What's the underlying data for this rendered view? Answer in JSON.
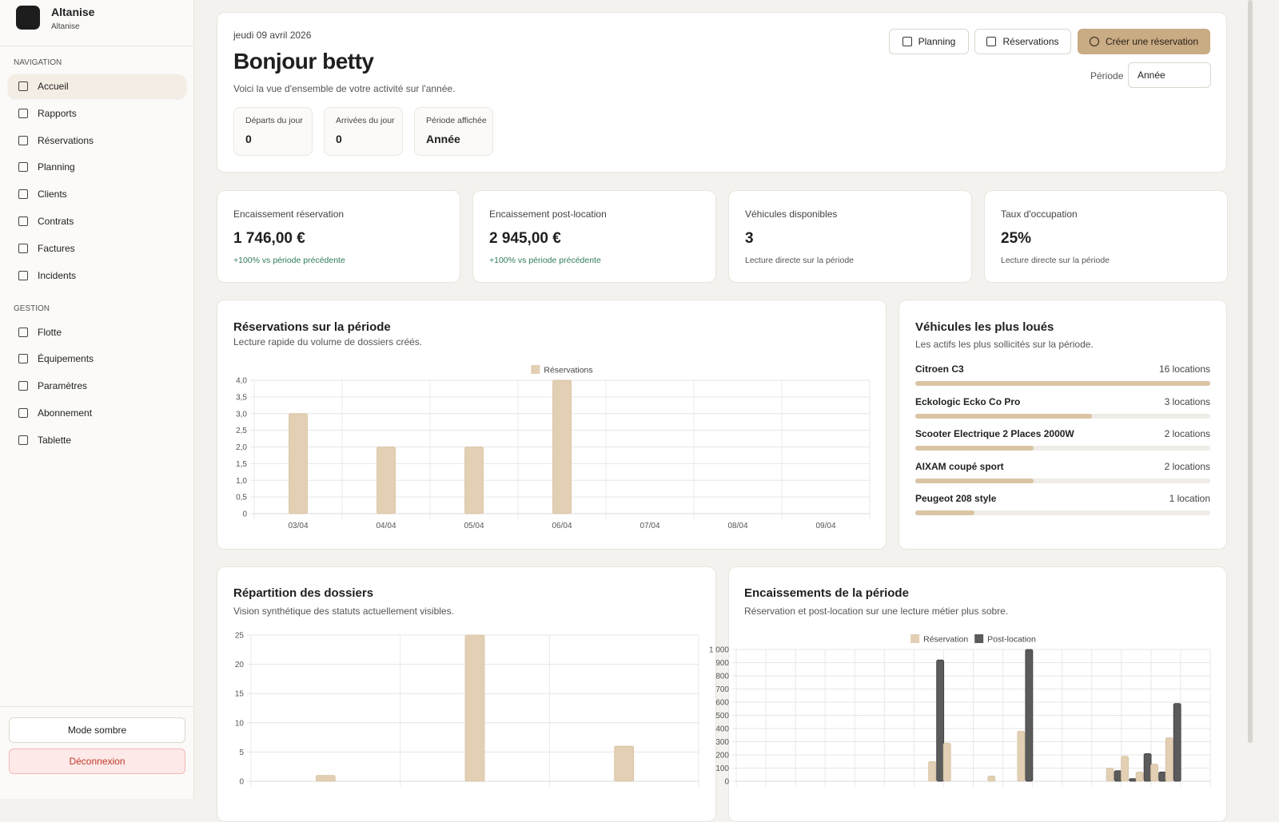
{
  "sidebar": {
    "brand": "Altanise",
    "brand_sub": "Altanise",
    "sections": [
      {
        "title": "NAVIGATION",
        "items": [
          "Accueil",
          "Rapports",
          "Réservations",
          "Planning",
          "Clients",
          "Contrats",
          "Factures",
          "Incidents"
        ]
      },
      {
        "title": "GESTION",
        "items": [
          "Flotte",
          "Équipements",
          "Paramètres",
          "Abonnement",
          "Tablette"
        ]
      }
    ],
    "theme_button": "Mode sombre",
    "logout_button": "Déconnexion"
  },
  "header": {
    "date": "jeudi 09 avril 2026",
    "greeting": "Bonjour betty",
    "subtitle": "Voici la vue d'ensemble de votre activité sur l'année.",
    "actions": [
      "Planning",
      "Réservations",
      "Créer une réservation"
    ],
    "period_label": "Période",
    "period_value": "Année",
    "stats": [
      {
        "label": "Départs du jour",
        "value": 0
      },
      {
        "label": "Arrivées du jour",
        "value": 0
      },
      {
        "label": "Période affichée",
        "value": "Année"
      }
    ]
  },
  "kpis": [
    {
      "label": "Encaissement réservation",
      "value": "1 746,00 €",
      "note": "+100% vs période précédente"
    },
    {
      "label": "Encaissement post-location",
      "value": "2 945,00 €",
      "note": "+100% vs période précédente"
    },
    {
      "label": "Véhicules disponibles",
      "value": 3,
      "note": "Lecture directe sur la période"
    },
    {
      "label": "Taux d'occupation",
      "value": "25%",
      "note": "Lecture directe sur la période"
    }
  ],
  "reservations_chart": {
    "type": "bar",
    "title": "Réservations sur la période",
    "subtitle": "Lecture rapide du volume de dossiers créés.",
    "categories": [
      "03/04",
      "04/04",
      "05/04",
      "06/04",
      "07/04",
      "08/04",
      "09/04"
    ],
    "series": [
      {
        "name": "Réservations",
        "color": "#e2cfb4",
        "values": [
          3,
          2,
          2,
          4,
          0,
          0,
          0
        ]
      }
    ],
    "ylim": [
      0,
      4
    ],
    "yticks": [
      0,
      {
        "value": 0.5,
        "label": "0,5"
      },
      {
        "value": 1,
        "label": "1,0"
      },
      {
        "value": 1.5,
        "label": "1,5"
      },
      {
        "value": 2,
        "label": "2,0"
      },
      {
        "value": 2.5,
        "label": "2,5"
      },
      {
        "value": 3,
        "label": "3,0"
      },
      {
        "value": 3.5,
        "label": "3,5"
      },
      {
        "value": 4,
        "label": "4,0"
      }
    ],
    "grid": true
  },
  "top_vehicles": {
    "title": "Véhicules les plus loués",
    "subtitle": "Les actifs les plus sollicités sur la période.",
    "items": [
      {
        "name": "Citroen C3",
        "value": 16,
        "value_label": "16 locations"
      },
      {
        "name": "Eckologic Ecko Co Pro",
        "value": 3,
        "value_label": "3 locations"
      },
      {
        "name": "Scooter Electrique 2 Places 2000W",
        "value": 2,
        "value_label": "2 locations"
      },
      {
        "name": "AIXAM coupé sport",
        "value": 2,
        "value_label": "2 locations"
      },
      {
        "name": "Peugeot 208 style",
        "value": 1,
        "value_label": "1 location"
      }
    ]
  },
  "dossiers_chart": {
    "type": "bar",
    "title": "Répartition des dossiers",
    "subtitle": "Vision synthétique des statuts actuellement visibles.",
    "categories": [
      null,
      null,
      null
    ],
    "series": [
      {
        "color": "#e2cfb4",
        "values": [
          1,
          25,
          6
        ]
      }
    ],
    "ylim": [
      0,
      25
    ],
    "yticks": [
      0,
      5,
      10,
      15,
      20,
      25
    ],
    "grid": true
  },
  "payments_chart": {
    "type": "bar",
    "title": "Encaissements de la période",
    "subtitle": "Réservation et post-location sur une lecture métier plus sobre.",
    "categories": [
      null,
      null,
      null,
      null,
      null,
      null,
      null,
      null,
      null,
      null,
      null,
      null,
      null,
      null,
      null,
      null,
      null,
      null,
      null,
      null,
      null,
      null,
      null,
      null,
      null,
      null,
      null,
      null,
      null,
      null,
      null,
      null
    ],
    "series": [
      {
        "name": "Réservation",
        "color": "#e2cfb4",
        "values": [
          0,
          0,
          0,
          0,
          0,
          0,
          0,
          0,
          0,
          0,
          0,
          0,
          0,
          150,
          290,
          0,
          0,
          40,
          0,
          380,
          0,
          0,
          0,
          0,
          0,
          100,
          190,
          70,
          130,
          330,
          0,
          0
        ]
      },
      {
        "name": "Post-location",
        "color": "#5b5b5b",
        "values": [
          0,
          0,
          0,
          0,
          0,
          0,
          0,
          0,
          0,
          0,
          0,
          0,
          0,
          920,
          0,
          0,
          0,
          0,
          0,
          1000,
          0,
          0,
          0,
          0,
          0,
          80,
          20,
          210,
          70,
          590,
          0,
          0
        ]
      }
    ],
    "ylim": [
      0,
      1000
    ],
    "yticks": [
      0,
      100,
      200,
      300,
      400,
      500,
      600,
      700,
      800,
      900,
      {
        "value": 1000,
        "label": "1 000"
      }
    ],
    "grid": true
  }
}
